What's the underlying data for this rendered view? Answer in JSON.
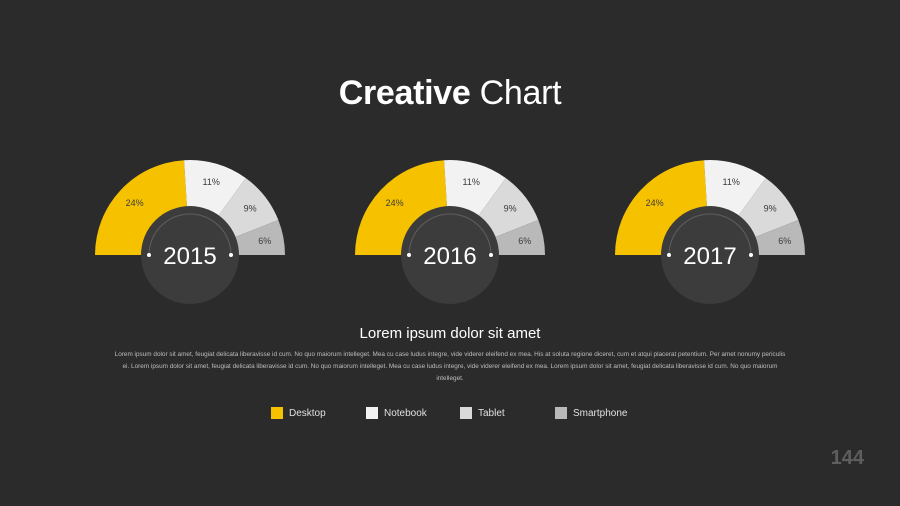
{
  "title": {
    "bold": "Creative",
    "light": "Chart"
  },
  "subtitle": "Lorem ipsum dolor sit amet",
  "body": "Lorem ipsum dolor sit amet, feugiat delicata liberavisse id cum. No quo maiorum intelleget. Mea cu case ludus integre, vide viderer eleifend ex mea. His at soluta regione diceret, cum et atqui placerat petentium. Per amet nonumy periculis ei. Lorem ipsum dolor sit amet, feugiat delicata liberavisse id cum. No quo maiorum intelleget. Mea cu case ludus integre, vide viderer eleifend ex mea. Lorem ipsum dolor sit amet, feugiat delicata liberavisse id cum. No quo maiorum intelleget.",
  "page_number": "144",
  "colors": {
    "Desktop": "#f6c200",
    "Notebook": "#f2f2f2",
    "Tablet": "#dadada",
    "Smartphone": "#b9b9b9",
    "hub": "#3c3c3c"
  },
  "legend": [
    {
      "label": "Desktop",
      "color": "#f6c200"
    },
    {
      "label": "Notebook",
      "color": "#f2f2f2"
    },
    {
      "label": "Tablet",
      "color": "#dadada"
    },
    {
      "label": "Smartphone",
      "color": "#b9b9b9"
    }
  ],
  "chart_data": [
    {
      "type": "pie",
      "title": "2015",
      "categories": [
        "Desktop",
        "Notebook",
        "Tablet",
        "Smartphone"
      ],
      "values": [
        24,
        11,
        9,
        6
      ],
      "labels": [
        "24%",
        "11%",
        "9%",
        "6%"
      ]
    },
    {
      "type": "pie",
      "title": "2016",
      "categories": [
        "Desktop",
        "Notebook",
        "Tablet",
        "Smartphone"
      ],
      "values": [
        24,
        11,
        9,
        6
      ],
      "labels": [
        "24%",
        "11%",
        "9%",
        "6%"
      ]
    },
    {
      "type": "pie",
      "title": "2017",
      "categories": [
        "Desktop",
        "Notebook",
        "Tablet",
        "Smartphone"
      ],
      "values": [
        24,
        11,
        9,
        6
      ],
      "labels": [
        "24%",
        "11%",
        "9%",
        "6%"
      ]
    }
  ]
}
